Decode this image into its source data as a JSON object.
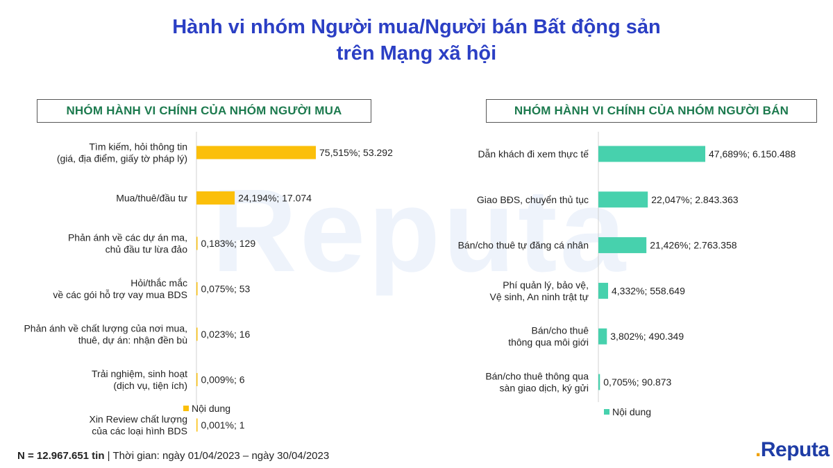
{
  "title": {
    "line1": "Hành vi nhóm Người mua/Người bán Bất động sản",
    "line2": "trên Mạng xã hội"
  },
  "watermark": "Reputa",
  "colors": {
    "buyer": "#fbbf0a",
    "seller": "#47d1ad",
    "title": "#2b3fc4",
    "box_text": "#1c7a4e"
  },
  "chart_data": [
    {
      "type": "bar",
      "orientation": "horizontal",
      "title": "NHÓM HÀNH VI CHÍNH CỦA NHÓM NGƯỜI MUA",
      "legend": "Nội dung",
      "legend_position": "bottom-left",
      "categories": [
        [
          "Tìm kiếm, hỏi thông tin",
          "(giá, địa điểm, giấy tờ pháp lý)"
        ],
        [
          "Mua/thuê/đầu tư"
        ],
        [
          "Phản ánh về các dự án ma,",
          "chủ đầu tư lừa đảo"
        ],
        [
          "Hỏi/thắc mắc",
          "về các gói hỗ trợ vay mua BDS"
        ],
        [
          "Phản ánh về chất lượng của nơi mua,",
          "thuê, dự án: nhận đền bù"
        ],
        [
          "Trải nghiệm, sinh hoạt",
          "(dịch vụ, tiện ích)"
        ],
        [
          "Xin Review chất lượng",
          "của các loại hình BDS"
        ]
      ],
      "values": [
        75.515,
        24.194,
        0.183,
        0.075,
        0.023,
        0.009,
        0.001
      ],
      "labels": [
        "75,515%;  53.292",
        "24,194%;  17.074",
        "0,183%;  129",
        "0,075%;  53",
        "0,023%;  16",
        "0,009%;  6",
        "0,001%;  1"
      ],
      "color": "#fbbf0a"
    },
    {
      "type": "bar",
      "orientation": "horizontal",
      "title": "NHÓM HÀNH VI CHÍNH CỦA NHÓM NGƯỜI BÁN",
      "legend": "Nội dung",
      "legend_position": "bottom-left",
      "categories": [
        [
          "Dẫn khách đi xem thực tế"
        ],
        [
          "Giao BĐS, chuyển thủ tục"
        ],
        [
          "Bán/cho thuê tự đăng cá nhân"
        ],
        [
          "Phí quản lý, bảo vệ,",
          "Vệ sinh, An ninh trật tự"
        ],
        [
          "Bán/cho thuê",
          "thông qua môi giới"
        ],
        [
          "Bán/cho thuê thông qua",
          "sàn giao dịch, ký gửi"
        ]
      ],
      "values": [
        47.689,
        22.047,
        21.426,
        4.332,
        3.802,
        0.705
      ],
      "labels": [
        "47,689%;  6.150.488",
        "22,047%;  2.843.363",
        "21,426%;  2.763.358",
        "4,332%;  558.649",
        "3,802%;  490.349",
        "0,705%;  90.873"
      ],
      "color": "#47d1ad"
    }
  ],
  "footer": {
    "n_label": "N = 12.967.651 tin",
    "time": " | Thời gian: ngày 01/04/2023 – ngày 30/04/2023"
  },
  "logo": {
    "text": "Reputa",
    "dot": "."
  }
}
